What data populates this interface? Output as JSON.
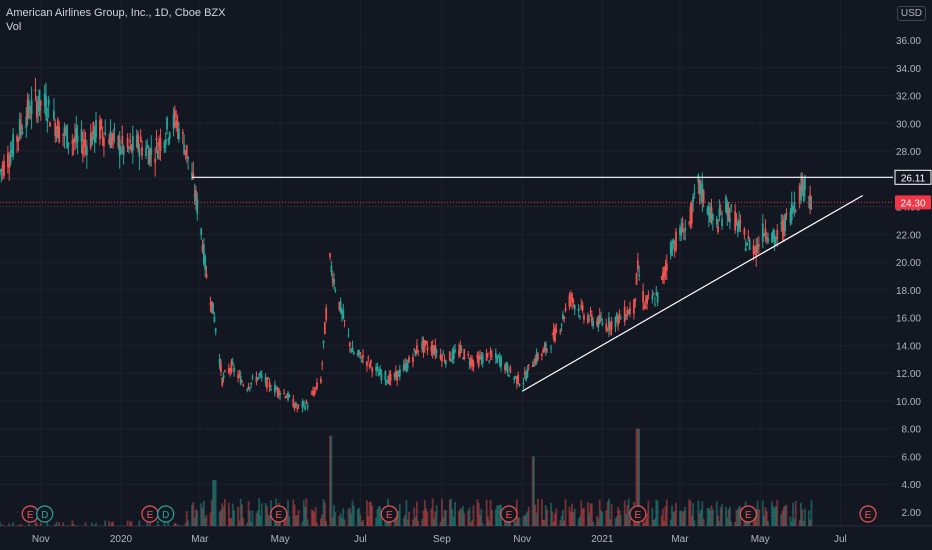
{
  "header": {
    "symbol_line": "American Airlines Group, Inc., 1D, Cboe BZX",
    "indicator": "Vol"
  },
  "currency_button": "USD",
  "colors": {
    "background": "#131722",
    "grid": "#1e222d",
    "up": "#26a69a",
    "down": "#ef5350",
    "axis_text": "#b2b5be",
    "line": "#ffffff",
    "price_tag": "#f23645",
    "resistance_tag": "#131722"
  },
  "chart_data": {
    "type": "candlestick",
    "title": "American Airlines Group, Inc., 1D, Cboe BZX",
    "y_axis": {
      "ticks": [
        2,
        4,
        6,
        8,
        10,
        12,
        14,
        16,
        18,
        20,
        22,
        24,
        26,
        28,
        30,
        32,
        34,
        36
      ],
      "tick_labels": [
        "2.00",
        "4.00",
        "6.00",
        "8.00",
        "10.00",
        "12.00",
        "14.00",
        "16.00",
        "18.00",
        "20.00",
        "22.00",
        "24.00",
        "26.00",
        "28.00",
        "30.00",
        "32.00",
        "34.00",
        "36.00"
      ],
      "ylim": [
        1,
        37.5
      ]
    },
    "x_axis": {
      "tick_labels": [
        "Nov",
        "2020",
        "Mar",
        "May",
        "Jul",
        "Sep",
        "Nov",
        "2021",
        "Mar",
        "May",
        "Jul"
      ],
      "tick_dates": [
        "2019-11-01",
        "2020-01-01",
        "2020-03-01",
        "2020-05-01",
        "2020-07-01",
        "2020-09-01",
        "2020-11-01",
        "2021-01-01",
        "2021-03-01",
        "2021-05-01",
        "2021-07-01"
      ],
      "xlim": [
        "2019-10-01",
        "2021-08-10"
      ]
    },
    "price_path": [
      [
        "2019-10-01",
        26.5
      ],
      [
        "2019-10-10",
        28.0
      ],
      [
        "2019-10-20",
        30.5
      ],
      [
        "2019-10-28",
        31.5
      ],
      [
        "2019-11-05",
        31.3
      ],
      [
        "2019-11-15",
        29.5
      ],
      [
        "2019-11-25",
        28.8
      ],
      [
        "2019-12-05",
        28.5
      ],
      [
        "2019-12-15",
        29.6
      ],
      [
        "2019-12-25",
        28.9
      ],
      [
        "2020-01-05",
        28.0
      ],
      [
        "2020-01-15",
        28.5
      ],
      [
        "2020-01-25",
        27.8
      ],
      [
        "2020-02-05",
        29.5
      ],
      [
        "2020-02-12",
        30.2
      ],
      [
        "2020-02-20",
        28.0
      ],
      [
        "2020-02-24",
        26.1
      ],
      [
        "2020-03-01",
        23.0
      ],
      [
        "2020-03-06",
        19.0
      ],
      [
        "2020-03-12",
        16.0
      ],
      [
        "2020-03-18",
        11.5
      ],
      [
        "2020-03-25",
        12.5
      ],
      [
        "2020-04-05",
        11.0
      ],
      [
        "2020-04-15",
        11.8
      ],
      [
        "2020-04-25",
        11.0
      ],
      [
        "2020-05-05",
        10.5
      ],
      [
        "2020-05-14",
        9.5
      ],
      [
        "2020-05-22",
        9.8
      ],
      [
        "2020-06-01",
        11.5
      ],
      [
        "2020-06-08",
        20.0
      ],
      [
        "2020-06-15",
        17.0
      ],
      [
        "2020-06-25",
        13.5
      ],
      [
        "2020-07-05",
        13.0
      ],
      [
        "2020-07-15",
        12.0
      ],
      [
        "2020-07-25",
        11.5
      ],
      [
        "2020-08-05",
        12.5
      ],
      [
        "2020-08-15",
        14.0
      ],
      [
        "2020-08-25",
        13.8
      ],
      [
        "2020-09-05",
        13.0
      ],
      [
        "2020-09-15",
        13.6
      ],
      [
        "2020-09-25",
        12.8
      ],
      [
        "2020-10-05",
        13.2
      ],
      [
        "2020-10-15",
        13.0
      ],
      [
        "2020-10-25",
        11.8
      ],
      [
        "2020-11-01",
        11.3
      ],
      [
        "2020-11-09",
        12.8
      ],
      [
        "2020-11-20",
        13.8
      ],
      [
        "2020-11-30",
        15.5
      ],
      [
        "2020-12-08",
        17.5
      ],
      [
        "2020-12-15",
        16.5
      ],
      [
        "2020-12-25",
        15.8
      ],
      [
        "2021-01-05",
        15.5
      ],
      [
        "2021-01-15",
        16.0
      ],
      [
        "2021-01-25",
        16.8
      ],
      [
        "2021-01-28",
        19.5
      ],
      [
        "2021-02-02",
        17.0
      ],
      [
        "2021-02-12",
        17.5
      ],
      [
        "2021-02-22",
        21.0
      ],
      [
        "2021-03-01",
        22.0
      ],
      [
        "2021-03-08",
        22.8
      ],
      [
        "2021-03-15",
        25.5
      ],
      [
        "2021-03-20",
        24.5
      ],
      [
        "2021-03-28",
        22.5
      ],
      [
        "2021-04-05",
        24.0
      ],
      [
        "2021-04-12",
        23.0
      ],
      [
        "2021-04-20",
        21.5
      ],
      [
        "2021-04-28",
        21.0
      ],
      [
        "2021-05-05",
        22.5
      ],
      [
        "2021-05-12",
        21.5
      ],
      [
        "2021-05-20",
        22.8
      ],
      [
        "2021-05-28",
        24.5
      ],
      [
        "2021-06-04",
        25.8
      ],
      [
        "2021-06-09",
        24.3
      ]
    ],
    "volume_axis_note": "volume bars at chart bottom",
    "volume_peaks": [
      [
        "2020-06-08",
        7.5
      ],
      [
        "2021-01-28",
        8.0
      ],
      [
        "2020-11-09",
        6.0
      ],
      [
        "2020-03-12",
        4.3
      ]
    ],
    "annotations": {
      "resistance_line": {
        "price": 26.11,
        "label": "26.11",
        "start": "2020-02-24",
        "end": "2021-08-10"
      },
      "last_price": {
        "price": 24.3,
        "label": "24.30"
      },
      "trend_line": {
        "from": [
          "2020-11-01",
          10.7
        ],
        "to": [
          "2021-07-18",
          24.8
        ]
      }
    },
    "event_markers": [
      {
        "date": "2019-10-24",
        "label": "E",
        "kind": "earnings"
      },
      {
        "date": "2019-11-04",
        "label": "D",
        "kind": "dividend"
      },
      {
        "date": "2020-01-23",
        "label": "E",
        "kind": "earnings"
      },
      {
        "date": "2020-02-04",
        "label": "D",
        "kind": "dividend"
      },
      {
        "date": "2020-04-30",
        "label": "E",
        "kind": "earnings"
      },
      {
        "date": "2020-07-23",
        "label": "E",
        "kind": "earnings"
      },
      {
        "date": "2020-10-22",
        "label": "E",
        "kind": "earnings"
      },
      {
        "date": "2021-01-28",
        "label": "E",
        "kind": "earnings"
      },
      {
        "date": "2021-04-22",
        "label": "E",
        "kind": "earnings"
      },
      {
        "date": "2021-07-22",
        "label": "E",
        "kind": "earnings"
      }
    ]
  }
}
